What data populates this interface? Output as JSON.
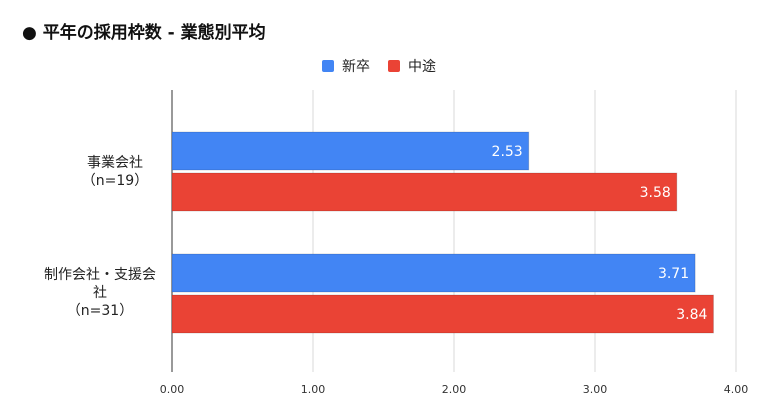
{
  "chart_data": {
    "type": "bar",
    "orientation": "horizontal",
    "title": "● 平年の採用枠数 - 業態別平均",
    "categories": [
      [
        "事業会社",
        "（n=19）"
      ],
      [
        "制作会社・支援会",
        "社",
        "（n=31）"
      ]
    ],
    "series": [
      {
        "name": "新卒",
        "color": "#4285f4",
        "values": [
          2.53,
          3.71
        ]
      },
      {
        "name": "中途",
        "color": "#ea4335",
        "values": [
          3.58,
          3.84
        ]
      }
    ],
    "xlim": [
      0,
      4
    ],
    "xticks": [
      "0.00",
      "1.00",
      "2.00",
      "3.00",
      "4.00"
    ],
    "grid": true,
    "legend_position": "top-center"
  }
}
